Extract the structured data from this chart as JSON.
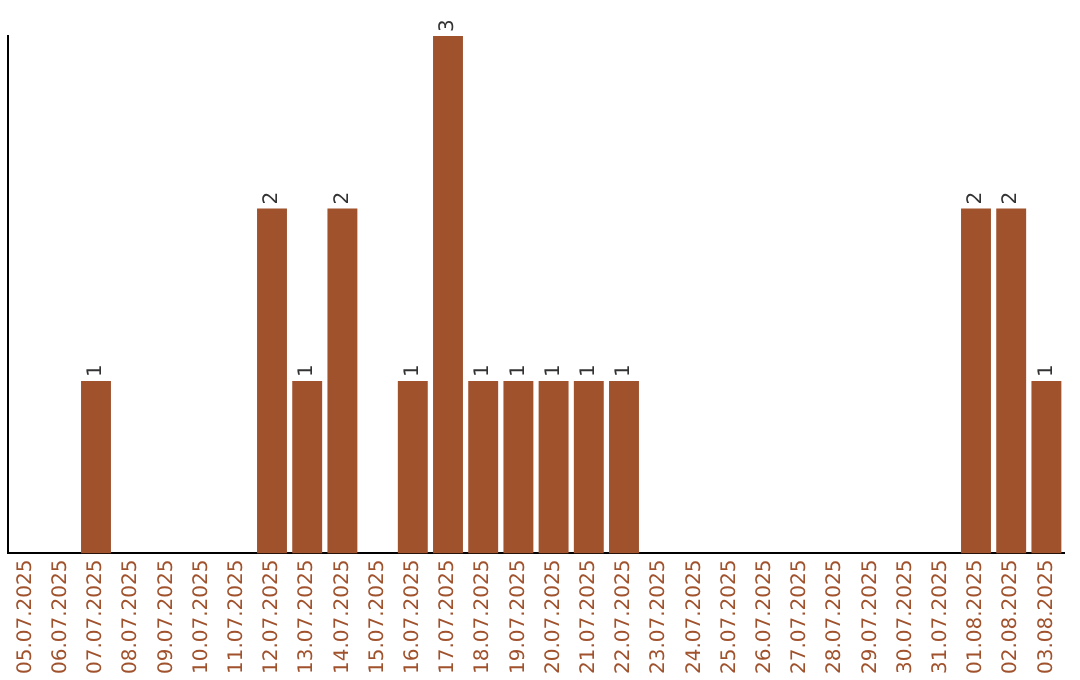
{
  "chart_data": {
    "type": "bar",
    "categories": [
      "05.07.2025",
      "06.07.2025",
      "07.07.2025",
      "08.07.2025",
      "09.07.2025",
      "10.07.2025",
      "11.07.2025",
      "12.07.2025",
      "13.07.2025",
      "14.07.2025",
      "15.07.2025",
      "16.07.2025",
      "17.07.2025",
      "18.07.2025",
      "19.07.2025",
      "20.07.2025",
      "21.07.2025",
      "22.07.2025",
      "23.07.2025",
      "24.07.2025",
      "25.07.2025",
      "26.07.2025",
      "27.07.2025",
      "28.07.2025",
      "29.07.2025",
      "30.07.2025",
      "31.07.2025",
      "01.08.2025",
      "02.08.2025",
      "03.08.2025"
    ],
    "values": [
      null,
      null,
      1,
      null,
      null,
      null,
      null,
      2,
      1,
      2,
      null,
      1,
      3,
      1,
      1,
      1,
      1,
      1,
      null,
      null,
      null,
      null,
      null,
      null,
      null,
      null,
      null,
      2,
      2,
      1
    ],
    "color": "#a0522d",
    "data_labels": true,
    "grid": false,
    "legend": false,
    "tick_labels": "x"
  }
}
